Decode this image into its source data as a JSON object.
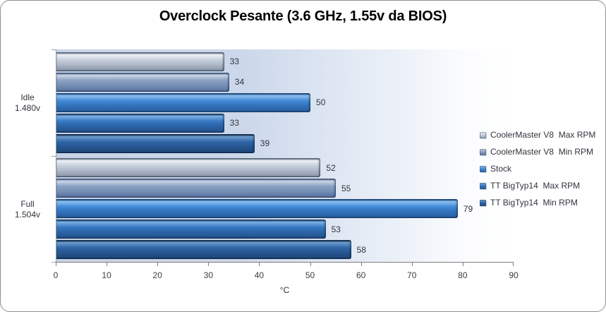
{
  "title": "Overclock Pesante (3.6 GHz, 1.55v da BIOS)",
  "chart_data": {
    "type": "bar",
    "orientation": "horizontal",
    "title": "Overclock Pesante (3.6 GHz, 1.55v da BIOS)",
    "xlabel": "°C",
    "xlim": [
      0,
      90
    ],
    "x_ticks": [
      0,
      10,
      20,
      30,
      40,
      50,
      60,
      70,
      80,
      90
    ],
    "grid": false,
    "legend_position": "right",
    "plot_bg_left": "#cbd7ea",
    "plot_bg_right": "#ffffff",
    "categories": [
      {
        "id": "idle",
        "line1": "Idle",
        "line2": "1.480v"
      },
      {
        "id": "full",
        "line1": "Full",
        "line2": "1.504v"
      }
    ],
    "series": [
      {
        "name": "CoolerMaster V8  Max RPM",
        "values": [
          33,
          52
        ],
        "colors": {
          "top_edge": "#6e7a8a",
          "highlight": "#eef2f7",
          "body": "#c6cfdb",
          "body2": "#aeb8c7",
          "shadow": "#929daf",
          "bottom_edge": "#5f6c7e"
        }
      },
      {
        "name": "CoolerMaster V8  Min RPM",
        "values": [
          34,
          55
        ],
        "colors": {
          "top_edge": "#51648a",
          "highlight": "#ccd6e6",
          "body": "#8ba1c4",
          "body2": "#7690b6",
          "shadow": "#5f79a5",
          "bottom_edge": "#42557a"
        }
      },
      {
        "name": "Stock",
        "values": [
          50,
          79
        ],
        "colors": {
          "top_edge": "#1d4f86",
          "highlight": "#8fc0ef",
          "body": "#418ad8",
          "body2": "#3372bd",
          "shadow": "#2a62a4",
          "bottom_edge": "#1a4577"
        }
      },
      {
        "name": "TT BigTyp14  Max RPM",
        "values": [
          33,
          53
        ],
        "colors": {
          "top_edge": "#173f6b",
          "highlight": "#7fb0e2",
          "body": "#3678c4",
          "body2": "#2c64a8",
          "shadow": "#255590",
          "bottom_edge": "#153663"
        }
      },
      {
        "name": "TT BigTyp14  Min RPM",
        "values": [
          39,
          58
        ],
        "colors": {
          "top_edge": "#122f50",
          "highlight": "#6f9dce",
          "body": "#2f67a8",
          "body2": "#275691",
          "shadow": "#204a7d",
          "bottom_edge": "#10294a"
        }
      }
    ]
  }
}
